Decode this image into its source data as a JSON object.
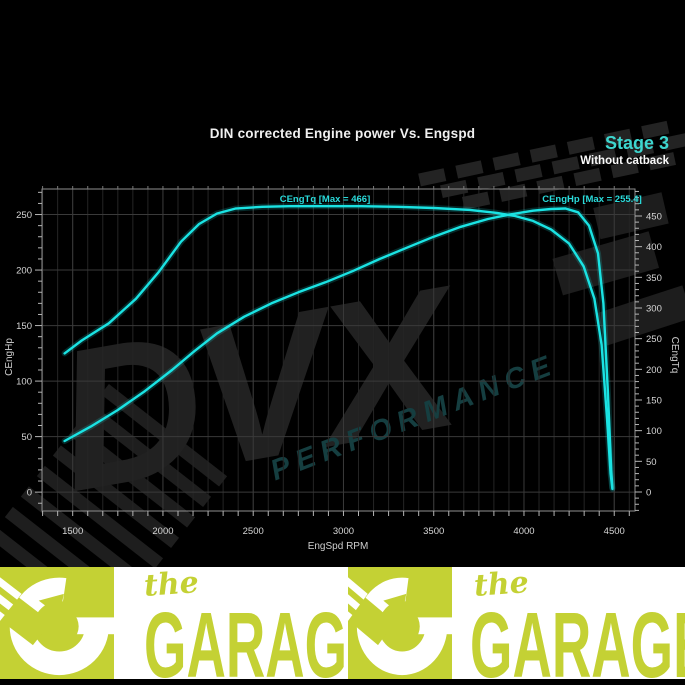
{
  "header": {
    "title": "DIN corrected Engine power Vs. Engspd",
    "stage_label": "Stage 3",
    "stage_sub": "Without catback"
  },
  "watermark": {
    "brand": "DVX",
    "sub": "PERFORMANCE"
  },
  "chart_data": {
    "type": "line",
    "title": "DIN corrected Engine power Vs. Engspd",
    "xlabel": "EngSpd RPM",
    "ylabel_left": "CEngHp",
    "ylabel_right": "CEngTq",
    "grid": true,
    "line_color": "#1ae3e3",
    "xlim": [
      1330,
      4615
    ],
    "x_ticks": [
      1500,
      2000,
      2500,
      3000,
      3500,
      4000,
      4500
    ],
    "ylim_left": [
      -17,
      273
    ],
    "yticks_left": [
      0,
      50,
      100,
      150,
      200,
      250
    ],
    "ylim_right": [
      -31,
      494
    ],
    "yticks_right": [
      0,
      50,
      100,
      150,
      200,
      250,
      300,
      350,
      400,
      450
    ],
    "series": [
      {
        "name": "CEngTq",
        "label": "CEngTq [Max = 466]",
        "axis": "right",
        "max": 466,
        "points": [
          [
            1455,
            226
          ],
          [
            1550,
            247
          ],
          [
            1700,
            275
          ],
          [
            1850,
            315
          ],
          [
            1975,
            358
          ],
          [
            2100,
            408
          ],
          [
            2200,
            437
          ],
          [
            2300,
            454
          ],
          [
            2400,
            462
          ],
          [
            2550,
            465
          ],
          [
            2700,
            466
          ],
          [
            2900,
            466
          ],
          [
            3100,
            466
          ],
          [
            3300,
            465
          ],
          [
            3500,
            463
          ],
          [
            3700,
            460
          ],
          [
            3850,
            455
          ],
          [
            3950,
            450
          ],
          [
            4050,
            442
          ],
          [
            4150,
            428
          ],
          [
            4250,
            405
          ],
          [
            4330,
            368
          ],
          [
            4390,
            315
          ],
          [
            4430,
            240
          ],
          [
            4460,
            120
          ],
          [
            4480,
            30
          ],
          [
            4490,
            5
          ]
        ]
      },
      {
        "name": "CEngHp",
        "label": "CEngHp [Max = 255.4]",
        "axis": "left",
        "max": 255.4,
        "points": [
          [
            1455,
            46
          ],
          [
            1600,
            59
          ],
          [
            1750,
            74
          ],
          [
            1900,
            91
          ],
          [
            2050,
            110
          ],
          [
            2175,
            127
          ],
          [
            2300,
            143
          ],
          [
            2450,
            158
          ],
          [
            2600,
            170
          ],
          [
            2750,
            180
          ],
          [
            2900,
            189
          ],
          [
            3050,
            199
          ],
          [
            3200,
            210
          ],
          [
            3350,
            220
          ],
          [
            3500,
            230
          ],
          [
            3650,
            239
          ],
          [
            3800,
            246
          ],
          [
            3920,
            250
          ],
          [
            4050,
            253.5
          ],
          [
            4150,
            255
          ],
          [
            4230,
            255.4
          ],
          [
            4300,
            252
          ],
          [
            4360,
            240
          ],
          [
            4410,
            215
          ],
          [
            4440,
            170
          ],
          [
            4465,
            90
          ],
          [
            4483,
            20
          ],
          [
            4490,
            4
          ]
        ]
      }
    ]
  },
  "branding": {
    "script_word": "the",
    "name_word": "GARAGE"
  }
}
